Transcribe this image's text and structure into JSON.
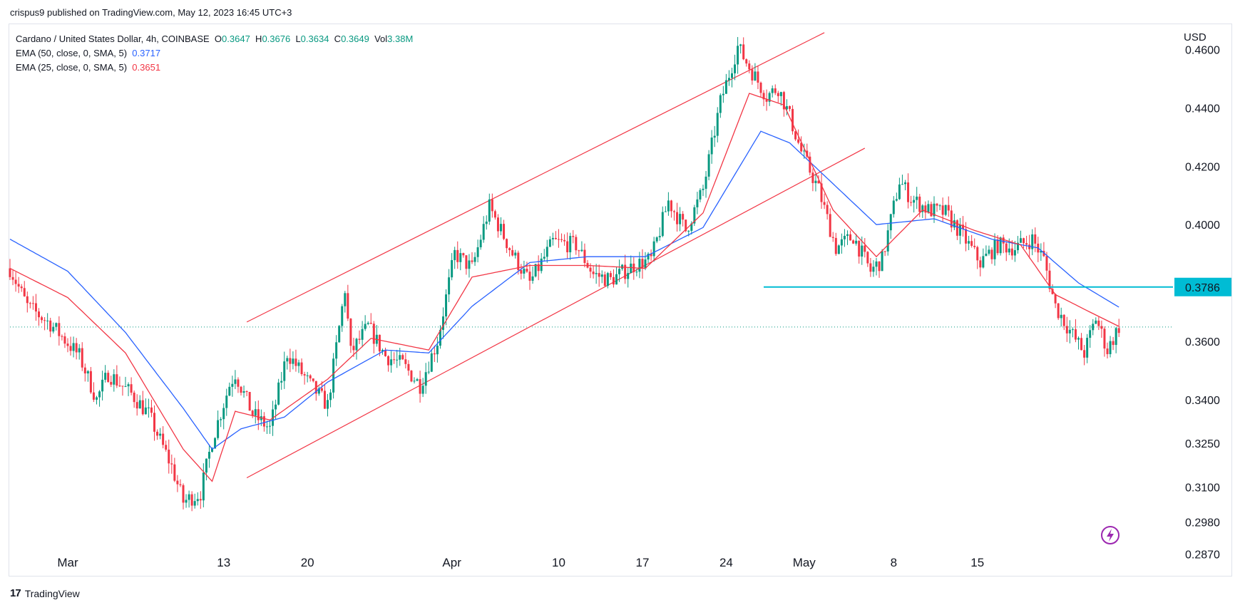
{
  "publisher": "crispus9 published on TradingView.com, May 12, 2023 16:45 UTC+3",
  "legend": {
    "symbol": "Cardano / United States Dollar, 4h, COINBASE",
    "o_label": "O",
    "o_value": "0.3647",
    "h_label": "H",
    "h_value": "0.3676",
    "l_label": "L",
    "l_value": "0.3634",
    "c_label": "C",
    "c_value": "0.3649",
    "vol_label": "Vol",
    "vol_value": "3.38M",
    "ema50_label": "EMA (50, close, 0, SMA, 5)",
    "ema50_value": "0.3717",
    "ema25_label": "EMA (25, close, 0, SMA, 5)",
    "ema25_value": "0.3651"
  },
  "currency": "USD",
  "brand": "TradingView",
  "colors": {
    "up": "#089981",
    "down": "#f23645",
    "ema50": "#2962ff",
    "ema25": "#f23645",
    "channel": "#f23645",
    "support": "#00bcd4"
  },
  "chart_data": {
    "type": "candlestick",
    "ylim": [
      0.284,
      0.466
    ],
    "y_ticks": [
      "0.4600",
      "0.4400",
      "0.4200",
      "0.4000",
      "0.3600",
      "0.3400",
      "0.3250",
      "0.3100",
      "0.2980",
      "0.2870"
    ],
    "x_ticks": [
      "Mar",
      "13",
      "20",
      "Apr",
      "10",
      "17",
      "24",
      "May",
      "8",
      "15"
    ],
    "support_level": "0.3786",
    "current_price_line": 0.3649,
    "price_path": [
      [
        0,
        0.385
      ],
      [
        6,
        0.372
      ],
      [
        14,
        0.366
      ],
      [
        24,
        0.355
      ],
      [
        30,
        0.34
      ],
      [
        34,
        0.349
      ],
      [
        42,
        0.342
      ],
      [
        48,
        0.335
      ],
      [
        56,
        0.317
      ],
      [
        60,
        0.305
      ],
      [
        66,
        0.308
      ],
      [
        70,
        0.326
      ],
      [
        76,
        0.345
      ],
      [
        78,
        0.349
      ],
      [
        84,
        0.335
      ],
      [
        90,
        0.33
      ],
      [
        96,
        0.356
      ],
      [
        104,
        0.345
      ],
      [
        110,
        0.338
      ],
      [
        116,
        0.378
      ],
      [
        118,
        0.356
      ],
      [
        124,
        0.365
      ],
      [
        130,
        0.355
      ],
      [
        136,
        0.352
      ],
      [
        142,
        0.345
      ],
      [
        148,
        0.36
      ],
      [
        154,
        0.39
      ],
      [
        160,
        0.385
      ],
      [
        166,
        0.406
      ],
      [
        174,
        0.39
      ],
      [
        180,
        0.38
      ],
      [
        188,
        0.394
      ],
      [
        196,
        0.393
      ],
      [
        202,
        0.383
      ],
      [
        208,
        0.381
      ],
      [
        216,
        0.386
      ],
      [
        222,
        0.388
      ],
      [
        228,
        0.408
      ],
      [
        234,
        0.398
      ],
      [
        240,
        0.412
      ],
      [
        246,
        0.442
      ],
      [
        252,
        0.461
      ],
      [
        256,
        0.454
      ],
      [
        262,
        0.444
      ],
      [
        266,
        0.447
      ],
      [
        270,
        0.437
      ],
      [
        274,
        0.425
      ],
      [
        280,
        0.412
      ],
      [
        286,
        0.392
      ],
      [
        292,
        0.396
      ],
      [
        298,
        0.384
      ],
      [
        302,
        0.388
      ],
      [
        308,
        0.415
      ],
      [
        312,
        0.409
      ],
      [
        318,
        0.405
      ],
      [
        324,
        0.404
      ],
      [
        330,
        0.396
      ],
      [
        336,
        0.387
      ],
      [
        342,
        0.393
      ],
      [
        348,
        0.392
      ],
      [
        354,
        0.395
      ],
      [
        358,
        0.388
      ],
      [
        362,
        0.372
      ],
      [
        368,
        0.362
      ],
      [
        372,
        0.356
      ],
      [
        376,
        0.368
      ],
      [
        380,
        0.357
      ],
      [
        384,
        0.365
      ]
    ],
    "ema_points": {
      "ema50": [
        [
          0,
          0.395
        ],
        [
          20,
          0.384
        ],
        [
          40,
          0.363
        ],
        [
          60,
          0.337
        ],
        [
          70,
          0.323
        ],
        [
          80,
          0.33
        ],
        [
          95,
          0.334
        ],
        [
          110,
          0.346
        ],
        [
          130,
          0.357
        ],
        [
          145,
          0.356
        ],
        [
          160,
          0.372
        ],
        [
          180,
          0.387
        ],
        [
          200,
          0.389
        ],
        [
          220,
          0.389
        ],
        [
          240,
          0.399
        ],
        [
          260,
          0.432
        ],
        [
          270,
          0.428
        ],
        [
          285,
          0.414
        ],
        [
          300,
          0.4
        ],
        [
          320,
          0.402
        ],
        [
          340,
          0.395
        ],
        [
          356,
          0.392
        ],
        [
          370,
          0.38
        ],
        [
          384,
          0.3717
        ]
      ],
      "ema25": [
        [
          0,
          0.385
        ],
        [
          20,
          0.375
        ],
        [
          40,
          0.356
        ],
        [
          60,
          0.323
        ],
        [
          70,
          0.312
        ],
        [
          78,
          0.336
        ],
        [
          90,
          0.333
        ],
        [
          110,
          0.347
        ],
        [
          125,
          0.361
        ],
        [
          145,
          0.357
        ],
        [
          160,
          0.382
        ],
        [
          180,
          0.386
        ],
        [
          200,
          0.386
        ],
        [
          220,
          0.385
        ],
        [
          240,
          0.404
        ],
        [
          256,
          0.445
        ],
        [
          268,
          0.441
        ],
        [
          285,
          0.405
        ],
        [
          300,
          0.389
        ],
        [
          316,
          0.405
        ],
        [
          334,
          0.398
        ],
        [
          350,
          0.393
        ],
        [
          362,
          0.376
        ],
        [
          374,
          0.37
        ],
        [
          384,
          0.3651
        ]
      ]
    },
    "channel": {
      "upper": [
        [
          82,
          0.3666
        ],
        [
          282,
          0.4658
        ]
      ],
      "lower": [
        [
          82,
          0.3132
        ],
        [
          296,
          0.4262
        ]
      ]
    }
  }
}
